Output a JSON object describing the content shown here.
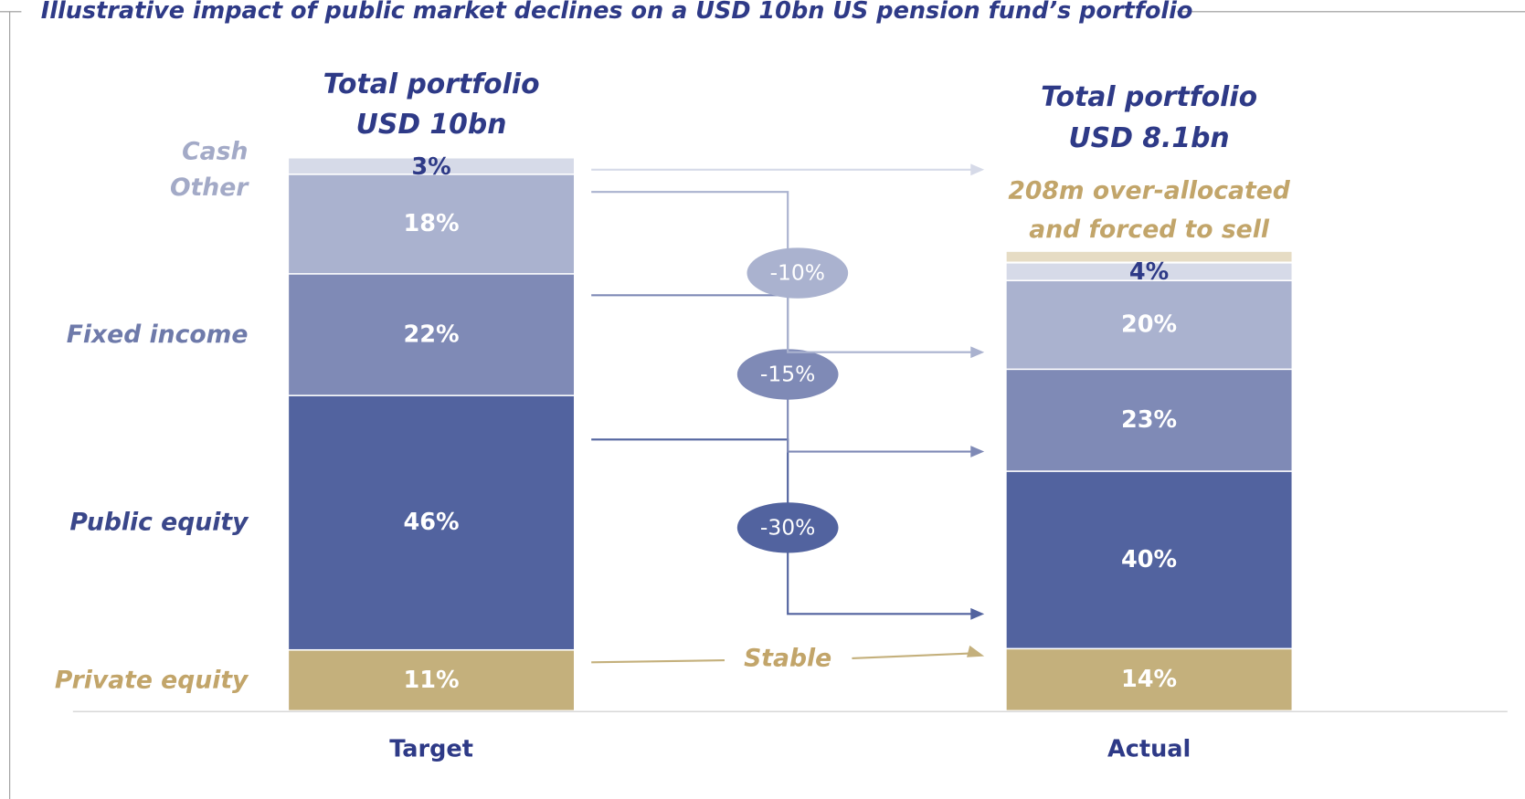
{
  "chart_data": {
    "type": "bar",
    "stacked": true,
    "title": "Illustrative impact of public market declines on a USD 10bn US pension fund’s portfolio",
    "categories": [
      "Target",
      "Actual"
    ],
    "total_title": "Total portfolio",
    "totals": [
      {
        "value": 10,
        "label": "USD 10bn"
      },
      {
        "value": 8.1,
        "label": "USD 8.1bn"
      }
    ],
    "over_allocation": {
      "lines": [
        "208m over-allocated",
        "and forced to sell"
      ],
      "color": "#e6dcc4"
    },
    "series": [
      {
        "name": "Private equity",
        "color": "#c4b07c",
        "label_color": "#c2a56a",
        "values": [
          11,
          14
        ],
        "value_labels": [
          "11%",
          "14%"
        ],
        "change": "Stable"
      },
      {
        "name": "Public equity",
        "color": "#52639f",
        "label_color": "#3a478a",
        "values": [
          46,
          40
        ],
        "value_labels": [
          "46%",
          "40%"
        ],
        "change": {
          "value": -30,
          "label": "-30%"
        }
      },
      {
        "name": "Fixed income",
        "color": "#7f8ab6",
        "label_color": "#6e7aaa",
        "values": [
          22,
          23
        ],
        "value_labels": [
          "22%",
          "23%"
        ],
        "change": {
          "value": -15,
          "label": "-15%"
        }
      },
      {
        "name": "Other",
        "color": "#aab2cf",
        "label_color": "#a3aac7",
        "values": [
          18,
          20
        ],
        "value_labels": [
          "18%",
          "20%"
        ],
        "change": {
          "value": -10,
          "label": "-10%"
        }
      },
      {
        "name": "Cash",
        "color": "#d6dae8",
        "label_color": "#a3aac7",
        "values": [
          3,
          4
        ],
        "value_labels": [
          "3%",
          "4%"
        ]
      }
    ]
  }
}
